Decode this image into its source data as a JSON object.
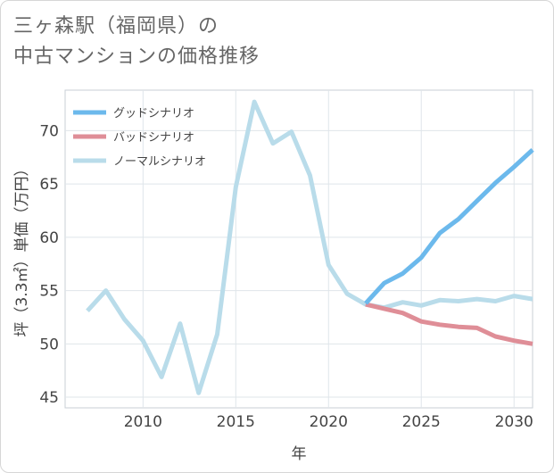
{
  "title": {
    "line1": "三ヶ森駅（福岡県）の",
    "line2": "中古マンションの価格推移"
  },
  "chart_data": {
    "type": "line",
    "title": "三ヶ森駅（福岡県）の中古マンションの価格推移",
    "xlabel": "年",
    "ylabel": "坪（3.3㎡）単価（万円）",
    "xlim": [
      2005.8,
      2031.0
    ],
    "ylim": [
      44.0,
      73.8
    ],
    "xticks": [
      2010,
      2015,
      2020,
      2025,
      2030
    ],
    "yticks": [
      45,
      50,
      55,
      60,
      65,
      70
    ],
    "grid": true,
    "legend_position": "top-left",
    "series": [
      {
        "name": "グッドシナリオ",
        "color": "#6cb9ec",
        "x": [
          2022,
          2023,
          2024,
          2025,
          2026,
          2027,
          2028,
          2029,
          2030,
          2031
        ],
        "values": [
          53.8,
          55.7,
          56.6,
          58.1,
          60.4,
          61.7,
          63.4,
          65.1,
          66.6,
          68.2
        ]
      },
      {
        "name": "バッドシナリオ",
        "color": "#df8e97",
        "x": [
          2022,
          2023,
          2024,
          2025,
          2026,
          2027,
          2028,
          2029,
          2030,
          2031
        ],
        "values": [
          53.7,
          53.3,
          52.9,
          52.1,
          51.8,
          51.6,
          51.5,
          50.7,
          50.3,
          50.0
        ]
      },
      {
        "name": "ノーマルシナリオ",
        "color": "#b9dcea",
        "x": [
          2007,
          2008,
          2009,
          2010,
          2011,
          2012,
          2013,
          2014,
          2015,
          2016,
          2017,
          2018,
          2019,
          2020,
          2021,
          2022,
          2023,
          2024,
          2025,
          2026,
          2027,
          2028,
          2029,
          2030,
          2031
        ],
        "values": [
          53.1,
          55.0,
          52.3,
          50.3,
          46.9,
          51.9,
          45.4,
          50.9,
          64.7,
          72.7,
          68.8,
          69.9,
          65.8,
          57.4,
          54.7,
          53.7,
          53.4,
          53.9,
          53.6,
          54.1,
          54.0,
          54.2,
          54.0,
          54.5,
          54.2
        ]
      }
    ]
  }
}
